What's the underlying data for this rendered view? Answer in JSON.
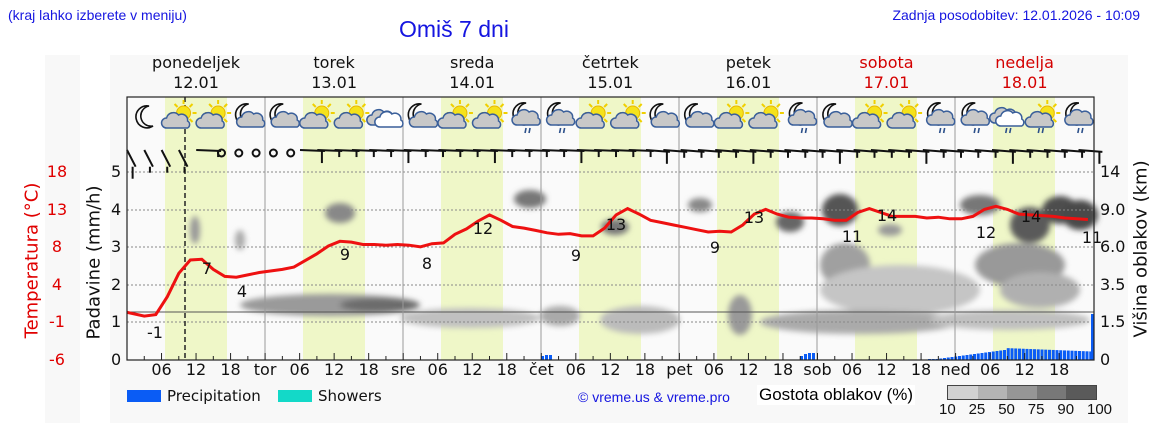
{
  "header": {
    "hint": "(kraj lahko izberete v meniju)",
    "title": "Omiš 7 dni",
    "last_update": "Zadnja posodobitev: 12.01.2026 - 10:09"
  },
  "days": [
    {
      "name": "ponedeljek",
      "date": "12.01",
      "weekend": false
    },
    {
      "name": "torek",
      "date": "13.01",
      "weekend": false
    },
    {
      "name": "sreda",
      "date": "14.01",
      "weekend": false
    },
    {
      "name": "četrtek",
      "date": "15.01",
      "weekend": false
    },
    {
      "name": "petek",
      "date": "16.01",
      "weekend": false
    },
    {
      "name": "sobota",
      "date": "17.01",
      "weekend": true
    },
    {
      "name": "nedelja",
      "date": "18.01",
      "weekend": true
    }
  ],
  "axes": {
    "temp_label": "Temperatura (°C)",
    "temp_ticks": [
      "18",
      "13",
      "8",
      "4",
      "-1",
      "-6"
    ],
    "precip_label": "Padavine (mm/h)",
    "precip_ticks": [
      "5",
      "4",
      "3",
      "2",
      "1",
      "0"
    ],
    "cloud_label": "Višina oblakov (km)",
    "cloud_ticks": [
      "14",
      "9.0",
      "6.0",
      "3.5",
      "1.5",
      "0"
    ],
    "x_ticks": [
      "06",
      "12",
      "18",
      "tor",
      "06",
      "12",
      "18",
      "sre",
      "06",
      "12",
      "18",
      "čet",
      "06",
      "12",
      "18",
      "pet",
      "06",
      "12",
      "18",
      "sob",
      "06",
      "12",
      "18",
      "ned",
      "06",
      "12",
      "18"
    ]
  },
  "legend": {
    "precipitation": "Precipitation",
    "showers": "Showers",
    "credit": "© vreme.us & vreme.pro",
    "cloud_density_title": "Gostota oblakov (%)",
    "cloud_density_scale": [
      "10",
      "25",
      "50",
      "75",
      "90",
      "100"
    ]
  },
  "colors": {
    "title_blue": "#1515e0",
    "temp_red": "#e00000",
    "weekend_red": "#d40000",
    "daylight": "#eff7c8",
    "precip_blue": "#0a5cf5",
    "showers_teal": "#13d9c8",
    "cloud_scale": [
      "#d2d2d2",
      "#b4b4b4",
      "#969696",
      "#787878",
      "#5a5a5a"
    ]
  },
  "icons": [
    "moon-clear",
    "sun-partly-cloudy",
    "sun-partly-cloudy",
    "moon-cloudy",
    "moon-cloudy",
    "sun-partly-cloudy",
    "sun-partly-cloudy",
    "cloudy",
    "moon-cloudy",
    "sun-partly-cloudy",
    "sun-partly-cloudy",
    "moon-rain",
    "moon-rain",
    "sun-partly-cloudy",
    "sun-partly-cloudy",
    "moon-cloudy",
    "moon-cloudy",
    "sun-partly-cloudy",
    "sun-partly-cloudy",
    "moon-rain",
    "moon-cloudy",
    "sun-partly-cloudy",
    "sun-partly-cloudy",
    "moon-rain",
    "moon-rain",
    "cloudy-rain",
    "sun-rain",
    "moon-rain"
  ],
  "chart_data": {
    "type": "line",
    "title": "Omiš 7 dni",
    "xlabel": "",
    "ylabel": "Temperatura (°C)",
    "secondary_ylabels": [
      "Padavine (mm/h)",
      "Višina oblakov (km)"
    ],
    "ylim_precip": [
      0,
      5
    ],
    "ylim_temp": [
      -6,
      18
    ],
    "grid": true,
    "now_marker": "12.01 ~10:00",
    "temperature_labels": [
      {
        "day": "12.01",
        "time": "03",
        "value": -1
      },
      {
        "day": "12.01",
        "time": "13",
        "value": 7
      },
      {
        "day": "12.01",
        "time": "21",
        "value": 4
      },
      {
        "day": "13.01",
        "time": "13",
        "value": 9
      },
      {
        "day": "14.01",
        "time": "01",
        "value": 8
      },
      {
        "day": "14.01",
        "time": "13",
        "value": 12
      },
      {
        "day": "15.01",
        "time": "01",
        "value": 9
      },
      {
        "day": "15.01",
        "time": "13",
        "value": 13
      },
      {
        "day": "16.01",
        "time": "01",
        "value": 9
      },
      {
        "day": "16.01",
        "time": "13",
        "value": 13
      },
      {
        "day": "17.01",
        "time": "01",
        "value": 11
      },
      {
        "day": "17.01",
        "time": "13",
        "value": 14
      },
      {
        "day": "18.01",
        "time": "01",
        "value": 12
      },
      {
        "day": "18.01",
        "time": "13",
        "value": 14
      },
      {
        "day": "19.01",
        "time": "00",
        "value": 11
      }
    ],
    "series": [
      {
        "name": "Temperature (°C)",
        "hours_from_start": [
          0,
          3,
          5,
          7,
          9,
          11,
          13,
          15,
          17,
          19,
          21,
          23,
          27,
          29,
          33,
          35,
          37,
          39,
          41,
          43,
          45,
          47,
          49,
          51,
          53,
          55,
          57,
          59,
          61,
          63,
          65,
          67,
          69,
          71,
          73,
          75,
          77,
          79,
          81,
          83,
          85,
          87,
          89,
          91,
          93,
          95,
          97,
          99,
          101,
          103,
          105,
          107,
          109,
          111,
          113,
          115,
          117,
          119,
          121,
          123,
          125,
          127,
          129,
          131,
          133,
          135,
          137,
          139,
          141,
          143,
          145,
          147,
          149,
          151,
          153,
          155,
          157,
          159,
          161,
          163,
          165,
          167
        ],
        "values": [
          0,
          -0.5,
          -0.3,
          2,
          5,
          6.7,
          6.8,
          5.5,
          4.6,
          4.5,
          4.8,
          5.1,
          5.5,
          5.8,
          7.5,
          8.5,
          9.1,
          9,
          8.7,
          8.7,
          8.6,
          8.7,
          8.6,
          8.4,
          8.8,
          8.9,
          10,
          10.7,
          11.7,
          12.5,
          11.8,
          11,
          10.8,
          10.5,
          10.2,
          10,
          10.1,
          9.8,
          9.8,
          10.8,
          12.5,
          13.3,
          12.6,
          11.8,
          11.5,
          11.2,
          10.9,
          10.6,
          10.3,
          10.4,
          10.3,
          11.2,
          12.6,
          13.2,
          12.6,
          12.2,
          12.1,
          12.1,
          12,
          11.8,
          11.8,
          12.8,
          13.3,
          12.8,
          12.3,
          12.3,
          12.3,
          12.1,
          12.2,
          12,
          12,
          12.3,
          13.2,
          13.6,
          13.2,
          12.6,
          12.5,
          12.4,
          12.3,
          12.1,
          12,
          11.9
        ]
      },
      {
        "name": "Precipitation (mm/h)",
        "note": "small bars near 0.1 on Wed late night, Fri night; rising to ~0.35 mm/h through Sunday, 1.2 at end"
      }
    ],
    "cloud_density_legend": {
      "title": "Gostota oblakov (%)",
      "levels": [
        10,
        25,
        50,
        75,
        90,
        100
      ]
    }
  }
}
